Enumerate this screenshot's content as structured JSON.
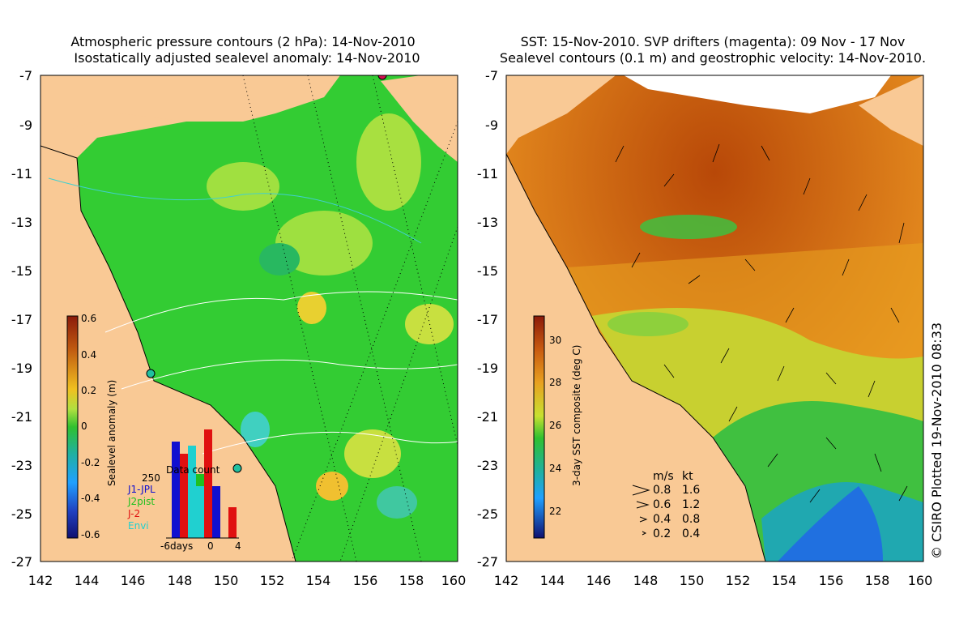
{
  "left_panel": {
    "title_line1": "Atmospheric pressure contours (2 hPa): 14-Nov-2010",
    "title_line2": "Isostatically adjusted sealevel anomaly: 14-Nov-2010",
    "colorbar": {
      "label": "Sealevel anomaly (m)",
      "ticks": [
        "0.6",
        "0.4",
        "0.2",
        "0",
        "-0.2",
        "-0.4",
        "-0.6"
      ]
    },
    "inset": {
      "title": "Data count",
      "max_label": "250",
      "missions": [
        {
          "name": "J1-JPL",
          "color": "#1010d0"
        },
        {
          "name": "J2pist",
          "color": "#20c020"
        },
        {
          "name": "J-2",
          "color": "#e01010"
        },
        {
          "name": "Envi",
          "color": "#20d0d0"
        }
      ],
      "xticks": [
        "-6days",
        "0",
        "4"
      ]
    }
  },
  "right_panel": {
    "title_line1": "SST: 15-Nov-2010. SVP drifters (magenta): 09 Nov - 17 Nov",
    "title_line2": "Sealevel contours (0.1 m) and geostrophic velocity: 14-Nov-2010.",
    "colorbar": {
      "label": "3-day SST composite (deg C)",
      "ticks": [
        "30",
        "28",
        "26",
        "24",
        "22"
      ]
    },
    "velocity_legend": {
      "header_ms": "m/s",
      "header_kt": "kt",
      "rows": [
        {
          "ms": "0.8",
          "kt": "1.6"
        },
        {
          "ms": "0.6",
          "kt": "1.2"
        },
        {
          "ms": "0.4",
          "kt": "0.8"
        },
        {
          "ms": "0.2",
          "kt": "0.4"
        }
      ]
    }
  },
  "axes": {
    "y_ticks": [
      "-7",
      "-9",
      "-11",
      "-13",
      "-15",
      "-17",
      "-19",
      "-21",
      "-23",
      "-25",
      "-27"
    ],
    "x_ticks": [
      "142",
      "144",
      "146",
      "148",
      "150",
      "152",
      "154",
      "156",
      "158",
      "160"
    ]
  },
  "credit": "© CSIRO Plotted 19-Nov-2010 08:33",
  "colors": {
    "land": "#f9c995",
    "ocean_green": "#33cc33",
    "sst_orange": "#d86a14"
  }
}
